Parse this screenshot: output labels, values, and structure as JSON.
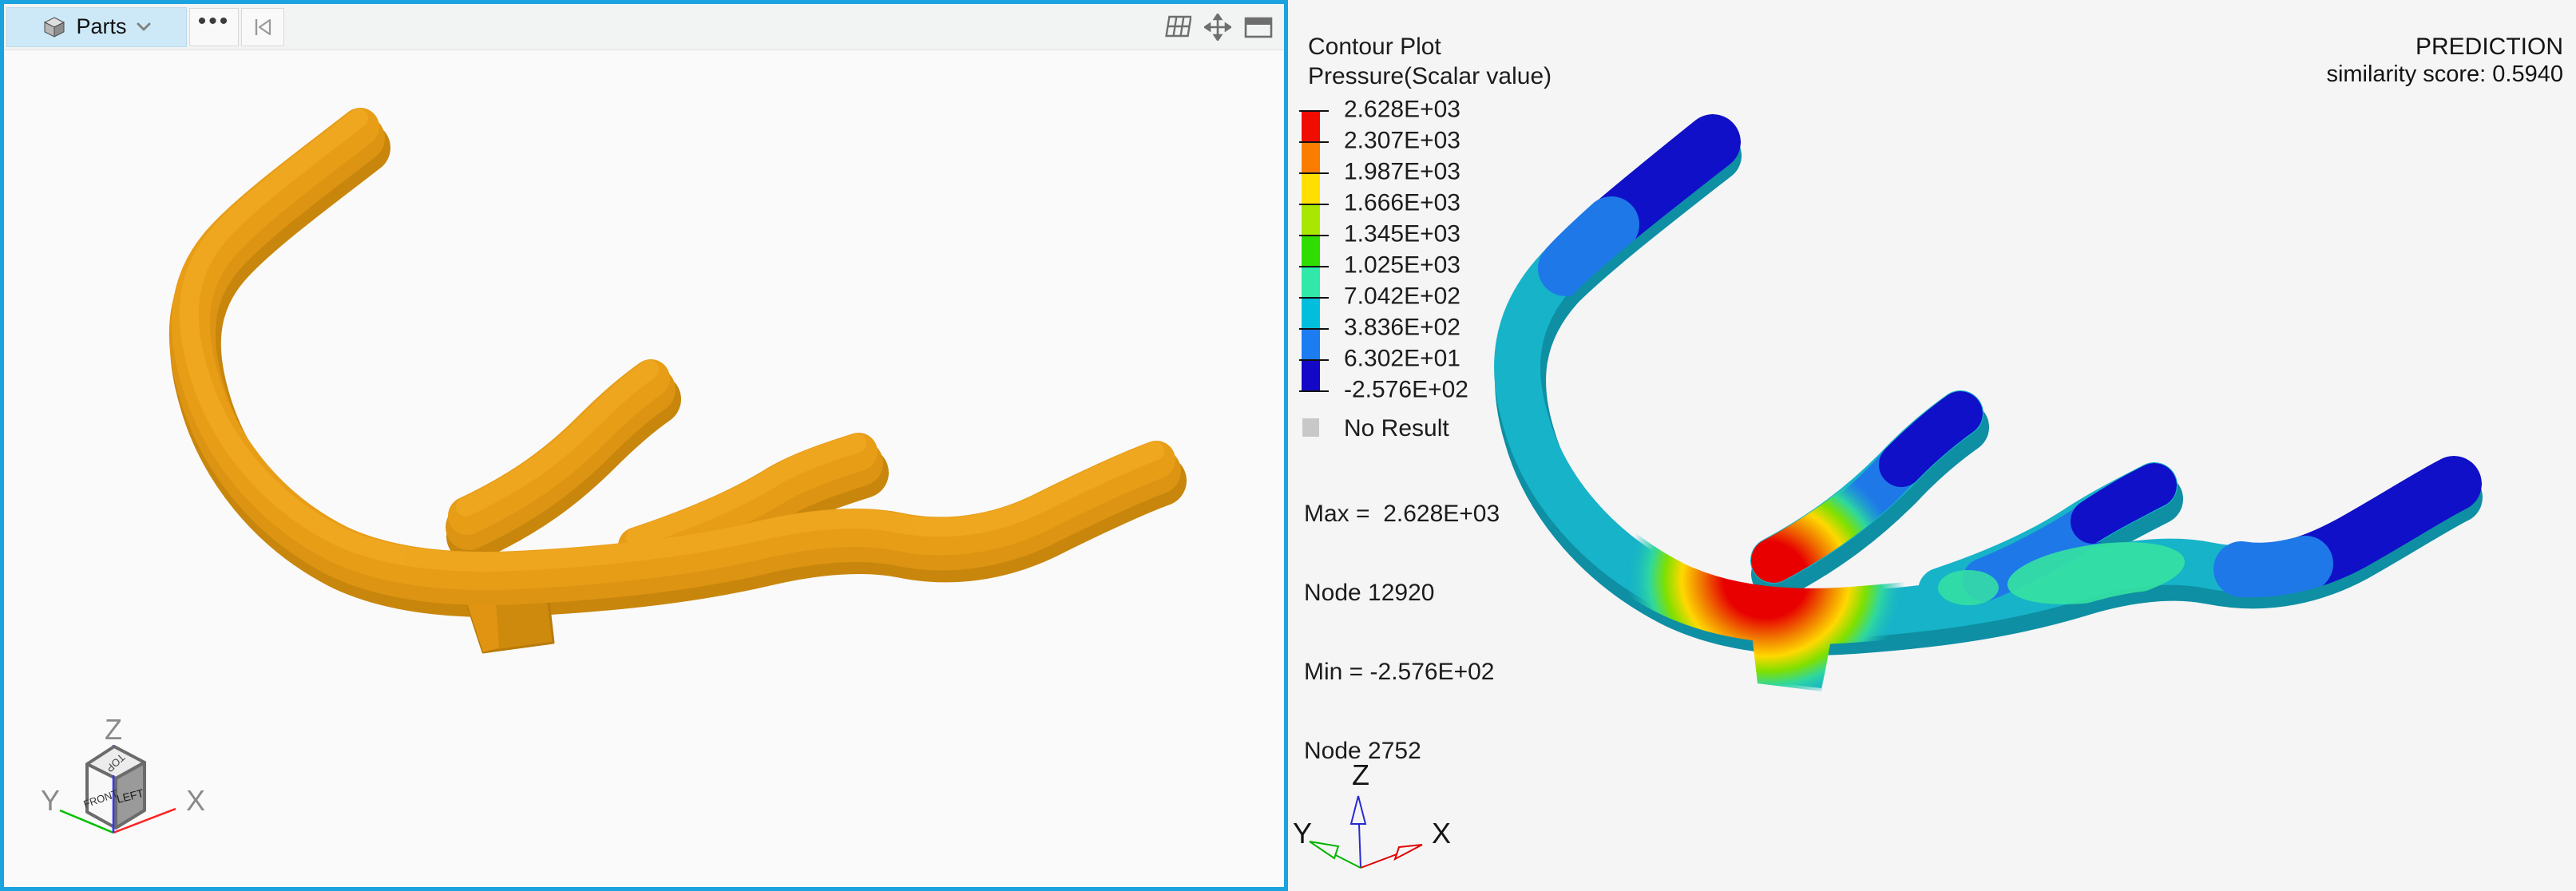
{
  "left_viewport": {
    "toolbar": {
      "parts_label": "Parts",
      "more_label": "•••",
      "icons": [
        "parts-cube-icon",
        "chevron-down-icon",
        "more-options-icon",
        "skip-to-start-icon",
        "grid-view-icon",
        "pan-view-icon",
        "window-layout-icon"
      ]
    },
    "model": {
      "name": "orange-part-model",
      "base_color": "#e89d17",
      "side_color": "#c8860d",
      "highlight_color": "#f0a820"
    },
    "view_cube": {
      "top_face": "TOP",
      "front_face": "FRONT",
      "left_face": "LEFT"
    },
    "axes": {
      "x": "X",
      "y": "Y",
      "z": "Z"
    }
  },
  "right_viewport": {
    "legend": {
      "title_line1": "Contour Plot",
      "title_line2": "Pressure(Scalar value)",
      "values": [
        "2.628E+03",
        "2.307E+03",
        "1.987E+03",
        "1.666E+03",
        "1.345E+03",
        "1.025E+03",
        "7.042E+02",
        "3.836E+02",
        "6.302E+01",
        "-2.576E+02"
      ],
      "colors": [
        "#f00c00",
        "#fa7d00",
        "#ffdf00",
        "#a8e700",
        "#30dd00",
        "#30e8a8",
        "#00bedc",
        "#1c7cf2",
        "#1408c8"
      ],
      "no_result_label": "No Result",
      "no_result_color": "#c8c8c8"
    },
    "stats": {
      "max_line": "Max =  2.628E+03",
      "max_node_line": "Node 12920",
      "min_line": "Min = -2.576E+02",
      "min_node_line": "Node 2752"
    },
    "prediction": {
      "title": "PREDICTION",
      "score_line": "similarity score: 0.5940"
    },
    "contour_model": {
      "name": "predicted-pressure-contour-model",
      "base_color": "#17b3c9",
      "hotspot_colors": [
        "#e80000",
        "#f07800",
        "#ffd800",
        "#7fe000",
        "#2fd89e"
      ],
      "cold_colors": [
        "#1010c8",
        "#1e78e8",
        "#35e2a2"
      ]
    },
    "axes": {
      "x": "X",
      "y": "Y",
      "z": "Z"
    }
  }
}
